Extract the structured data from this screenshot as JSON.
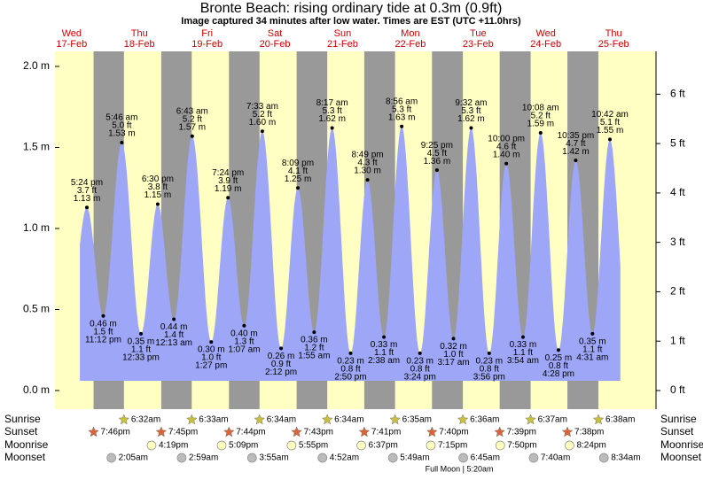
{
  "title": "Bronte Beach: rising  ordinary tide at 0.3m (0.9ft)",
  "subtitle": "Image captured 34 minutes after low water. Times are EST (UTC +11.0hrs)",
  "axis": {
    "ylim": [
      -0.115,
      2.093
    ],
    "yticks": [
      {
        "value": 0,
        "label": "0.0 m"
      },
      {
        "value": 0.5,
        "label": "0.5 m"
      },
      {
        "value": 1,
        "label": "1.0 m"
      },
      {
        "value": 1.5,
        "label": "1.5 m"
      },
      {
        "value": 2,
        "label": "2.0 m"
      }
    ],
    "y2lim": [
      -0.377,
      6.867
    ],
    "y2ticks": [
      {
        "value": 0,
        "label": "0 ft"
      },
      {
        "value": 1,
        "label": "1 ft"
      },
      {
        "value": 2,
        "label": "2 ft"
      },
      {
        "value": 3,
        "label": "3 ft"
      },
      {
        "value": 4,
        "label": "4 ft"
      },
      {
        "value": 5,
        "label": "5 ft"
      },
      {
        "value": 6,
        "label": "6 ft"
      }
    ]
  },
  "row_labels": {
    "sunrise": "Sunrise",
    "sunset": "Sunset",
    "moonrise": "Moonrise",
    "moonset": "Moonset"
  },
  "days": [
    {
      "weekday": "Wed",
      "date": "17-Feb",
      "sunrise": null,
      "sunset": "7:46pm",
      "moonrise": null,
      "moonset": null,
      "tides": [
        {
          "time": "5:24 pm",
          "ft": "3.7 ft",
          "m": "1.13 m",
          "height": 1.13,
          "kind": "high"
        },
        {
          "time": "11:12 pm",
          "ft": "1.5 ft",
          "m": "0.46 m",
          "height": 0.46,
          "kind": "low"
        }
      ]
    },
    {
      "weekday": "Thu",
      "date": "18-Feb",
      "sunrise": "6:32am",
      "sunset": "7:45pm",
      "moonrise": "4:19pm",
      "moonset": "2:05am",
      "tides": [
        {
          "time": "5:46 am",
          "ft": "5.0 ft",
          "m": "1.53 m",
          "height": 1.53,
          "kind": "high"
        },
        {
          "time": "12:33 pm",
          "ft": "1.1 ft",
          "m": "0.35 m",
          "height": 0.35,
          "kind": "low"
        },
        {
          "time": "6:30 pm",
          "ft": "3.8 ft",
          "m": "1.15 m",
          "height": 1.15,
          "kind": "high"
        }
      ]
    },
    {
      "weekday": "Fri",
      "date": "19-Feb",
      "sunrise": "6:33am",
      "sunset": "7:44pm",
      "moonrise": "5:09pm",
      "moonset": "2:59am",
      "tides": [
        {
          "time": "12:13 am",
          "ft": "1.4 ft",
          "m": "0.44 m",
          "height": 0.44,
          "kind": "low"
        },
        {
          "time": "6:43 am",
          "ft": "5.2 ft",
          "m": "1.57 m",
          "height": 1.57,
          "kind": "high"
        },
        {
          "time": "1:27 pm",
          "ft": "1.0 ft",
          "m": "0.30 m",
          "height": 0.3,
          "kind": "low"
        },
        {
          "time": "7:24 pm",
          "ft": "3.9 ft",
          "m": "1.19 m",
          "height": 1.19,
          "kind": "high"
        }
      ]
    },
    {
      "weekday": "Sat",
      "date": "20-Feb",
      "sunrise": "6:34am",
      "sunset": "7:43pm",
      "moonrise": "5:55pm",
      "moonset": "3:55am",
      "tides": [
        {
          "time": "1:07 am",
          "ft": "1.3 ft",
          "m": "0.40 m",
          "height": 0.4,
          "kind": "low"
        },
        {
          "time": "7:33 am",
          "ft": "5.2 ft",
          "m": "1.60 m",
          "height": 1.6,
          "kind": "high"
        },
        {
          "time": "2:12 pm",
          "ft": "0.9 ft",
          "m": "0.26 m",
          "height": 0.26,
          "kind": "low"
        },
        {
          "time": "8:09 pm",
          "ft": "4.1 ft",
          "m": "1.25 m",
          "height": 1.25,
          "kind": "high"
        }
      ]
    },
    {
      "weekday": "Sun",
      "date": "21-Feb",
      "sunrise": "6:34am",
      "sunset": "7:41pm",
      "moonrise": "6:37pm",
      "moonset": "4:52am",
      "tides": [
        {
          "time": "1:55 am",
          "ft": "1.2 ft",
          "m": "0.36 m",
          "height": 0.36,
          "kind": "low"
        },
        {
          "time": "8:17 am",
          "ft": "5.3 ft",
          "m": "1.62 m",
          "height": 1.62,
          "kind": "high"
        },
        {
          "time": "2:50 pm",
          "ft": "0.8 ft",
          "m": "0.23 m",
          "height": 0.23,
          "kind": "low"
        },
        {
          "time": "8:49 pm",
          "ft": "4.3 ft",
          "m": "1.30 m",
          "height": 1.3,
          "kind": "high"
        }
      ]
    },
    {
      "weekday": "Mon",
      "date": "22-Feb",
      "sunrise": "6:35am",
      "sunset": "7:40pm",
      "moonrise": "7:15pm",
      "moonset": "5:49am",
      "tides": [
        {
          "time": "2:38 am",
          "ft": "1.1 ft",
          "m": "0.33 m",
          "height": 0.33,
          "kind": "low"
        },
        {
          "time": "8:56 am",
          "ft": "5.3 ft",
          "m": "1.63 m",
          "height": 1.63,
          "kind": "high"
        },
        {
          "time": "3:24 pm",
          "ft": "0.8 ft",
          "m": "0.23 m",
          "height": 0.23,
          "kind": "low"
        },
        {
          "time": "9:25 pm",
          "ft": "4.5 ft",
          "m": "1.36 m",
          "height": 1.36,
          "kind": "high"
        }
      ]
    },
    {
      "weekday": "Tue",
      "date": "23-Feb",
      "sunrise": "6:36am",
      "sunset": "7:39pm",
      "moonrise": "7:50pm",
      "moonset": "6:45am",
      "event": "Full Moon | 5:20am",
      "tides": [
        {
          "time": "3:17 am",
          "ft": "1.0 ft",
          "m": "0.32 m",
          "height": 0.32,
          "kind": "low"
        },
        {
          "time": "9:32 am",
          "ft": "5.3 ft",
          "m": "1.62 m",
          "height": 1.62,
          "kind": "high"
        },
        {
          "time": "3:56 pm",
          "ft": "0.8 ft",
          "m": "0.23 m",
          "height": 0.23,
          "kind": "low"
        },
        {
          "time": "10:00 pm",
          "ft": "4.6 ft",
          "m": "1.40 m",
          "height": 1.4,
          "kind": "high"
        }
      ]
    },
    {
      "weekday": "Wed",
      "date": "24-Feb",
      "sunrise": "6:37am",
      "sunset": "7:38pm",
      "moonrise": "8:24pm",
      "moonset": "7:40am",
      "tides": [
        {
          "time": "3:54 am",
          "ft": "1.1 ft",
          "m": "0.33 m",
          "height": 0.33,
          "kind": "low"
        },
        {
          "time": "10:08 am",
          "ft": "5.2 ft",
          "m": "1.59 m",
          "height": 1.59,
          "kind": "high"
        },
        {
          "time": "4:28 pm",
          "ft": "0.8 ft",
          "m": "0.25 m",
          "height": 0.25,
          "kind": "low"
        },
        {
          "time": "10:35 pm",
          "ft": "4.7 ft",
          "m": "1.42 m",
          "height": 1.42,
          "kind": "high"
        }
      ]
    },
    {
      "weekday": "Thu",
      "date": "25-Feb",
      "sunrise": "6:38am",
      "sunset": null,
      "moonrise": null,
      "moonset": "8:34am",
      "tides": [
        {
          "time": "4:31 am",
          "ft": "1.1 ft",
          "m": "0.35 m",
          "height": 0.35,
          "kind": "low"
        },
        {
          "time": "10:42 am",
          "ft": "5.1 ft",
          "m": "1.55 m",
          "height": 1.55,
          "kind": "high"
        }
      ]
    }
  ]
}
